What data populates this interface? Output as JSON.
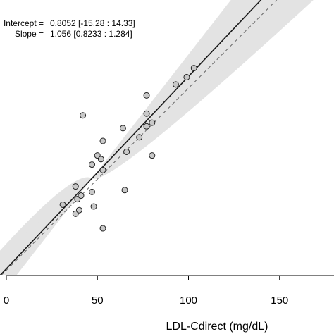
{
  "chart_data": {
    "type": "scatter",
    "xlabel": "LDL-Cdirect (mg/dL)",
    "ylabel": "",
    "x_ticks": [
      "0",
      "50",
      "100",
      "150"
    ],
    "stats": [
      {
        "label": "Intercept =",
        "value": "0.8052 [-15.28 : 14.33]"
      },
      {
        "label": "Slope =",
        "value": "1.056 [0.8233 : 1.284]"
      }
    ],
    "regression": {
      "intercept": 0.8052,
      "slope": 1.056,
      "slope_ci": [
        0.8233,
        1.284
      ],
      "intercept_ci": [
        -15.28,
        14.33
      ]
    },
    "identity_line": {
      "intercept": 0,
      "slope": 1
    },
    "points": [
      {
        "x": 31,
        "y": 36
      },
      {
        "x": 38,
        "y": 46
      },
      {
        "x": 38,
        "y": 31
      },
      {
        "x": 39,
        "y": 39
      },
      {
        "x": 40,
        "y": 33
      },
      {
        "x": 41,
        "y": 41
      },
      {
        "x": 42,
        "y": 85
      },
      {
        "x": 47,
        "y": 43
      },
      {
        "x": 47,
        "y": 58
      },
      {
        "x": 48,
        "y": 35
      },
      {
        "x": 50,
        "y": 63
      },
      {
        "x": 52,
        "y": 61
      },
      {
        "x": 53,
        "y": 23
      },
      {
        "x": 53,
        "y": 55
      },
      {
        "x": 53,
        "y": 71
      },
      {
        "x": 64,
        "y": 78
      },
      {
        "x": 65,
        "y": 44
      },
      {
        "x": 66,
        "y": 65
      },
      {
        "x": 73,
        "y": 73
      },
      {
        "x": 77,
        "y": 86
      },
      {
        "x": 77,
        "y": 79
      },
      {
        "x": 77,
        "y": 96
      },
      {
        "x": 80,
        "y": 63
      },
      {
        "x": 80,
        "y": 81
      },
      {
        "x": 93,
        "y": 102
      },
      {
        "x": 99,
        "y": 106
      },
      {
        "x": 103,
        "y": 111
      }
    ],
    "colors": {
      "point_fill": "#c8c8c8",
      "band": "#e3e3e3",
      "line": "#1a1a1a",
      "dashed": "#666666"
    }
  }
}
